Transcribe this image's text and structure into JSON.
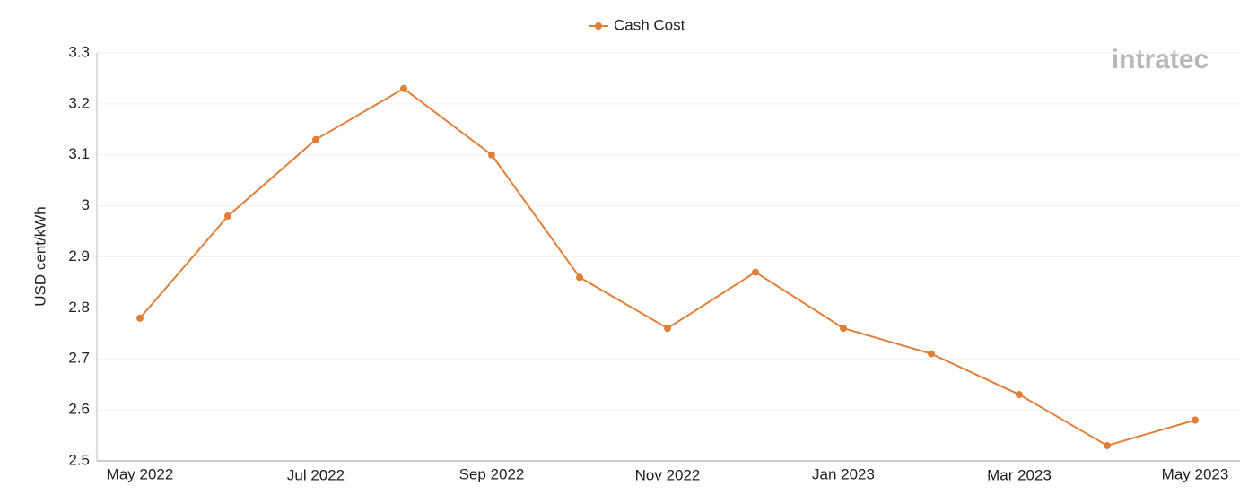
{
  "chart_data": {
    "type": "line",
    "categories": [
      "May 2022",
      null,
      "Jul 2022",
      null,
      "Sep 2022",
      null,
      "Nov 2022",
      null,
      "Jan 2023",
      null,
      "Mar 2023",
      null,
      "May 2023"
    ],
    "series": [
      {
        "name": "Cash Cost",
        "color": "#e07f38",
        "values": [
          2.78,
          2.98,
          3.13,
          3.23,
          3.1,
          2.86,
          2.76,
          2.87,
          2.76,
          2.71,
          2.63,
          2.53,
          2.58
        ]
      }
    ],
    "ylabel": "USD cent/kWh",
    "ylim": [
      2.5,
      3.3
    ],
    "yticks": [
      2.5,
      2.6,
      2.7,
      2.8,
      2.9,
      3,
      3.1,
      3.2,
      3.3
    ],
    "grid": true,
    "legend": "top",
    "watermark": "intratec"
  }
}
